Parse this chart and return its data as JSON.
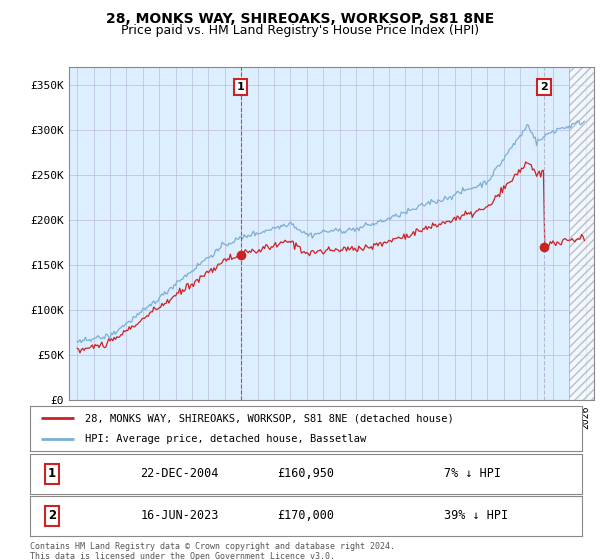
{
  "title": "28, MONKS WAY, SHIREOAKS, WORKSOP, S81 8NE",
  "subtitle": "Price paid vs. HM Land Registry's House Price Index (HPI)",
  "title_fontsize": 10,
  "subtitle_fontsize": 9,
  "background_color": "#ffffff",
  "plot_bg_color": "#ddeeff",
  "yticks": [
    0,
    50000,
    100000,
    150000,
    200000,
    250000,
    300000,
    350000
  ],
  "ytick_labels": [
    "£0",
    "£50K",
    "£100K",
    "£150K",
    "£200K",
    "£250K",
    "£300K",
    "£350K"
  ],
  "ylim": [
    0,
    370000
  ],
  "xlim_start": 1994.5,
  "xlim_end": 2026.5,
  "hpi_color": "#7bafd4",
  "price_color": "#cc2222",
  "sale1_x": 2004.97,
  "sale1_y": 160950,
  "sale2_x": 2023.46,
  "sale2_y": 170000,
  "sale1_date": "22-DEC-2004",
  "sale1_price": "£160,950",
  "sale1_pct": "7% ↓ HPI",
  "sale2_date": "16-JUN-2023",
  "sale2_price": "£170,000",
  "sale2_pct": "39% ↓ HPI",
  "legend_line1": "28, MONKS WAY, SHIREOAKS, WORKSOP, S81 8NE (detached house)",
  "legend_line2": "HPI: Average price, detached house, Bassetlaw",
  "footer": "Contains HM Land Registry data © Crown copyright and database right 2024.\nThis data is licensed under the Open Government Licence v3.0.",
  "hatch_start": 2025.0,
  "hatch_end": 2026.5
}
